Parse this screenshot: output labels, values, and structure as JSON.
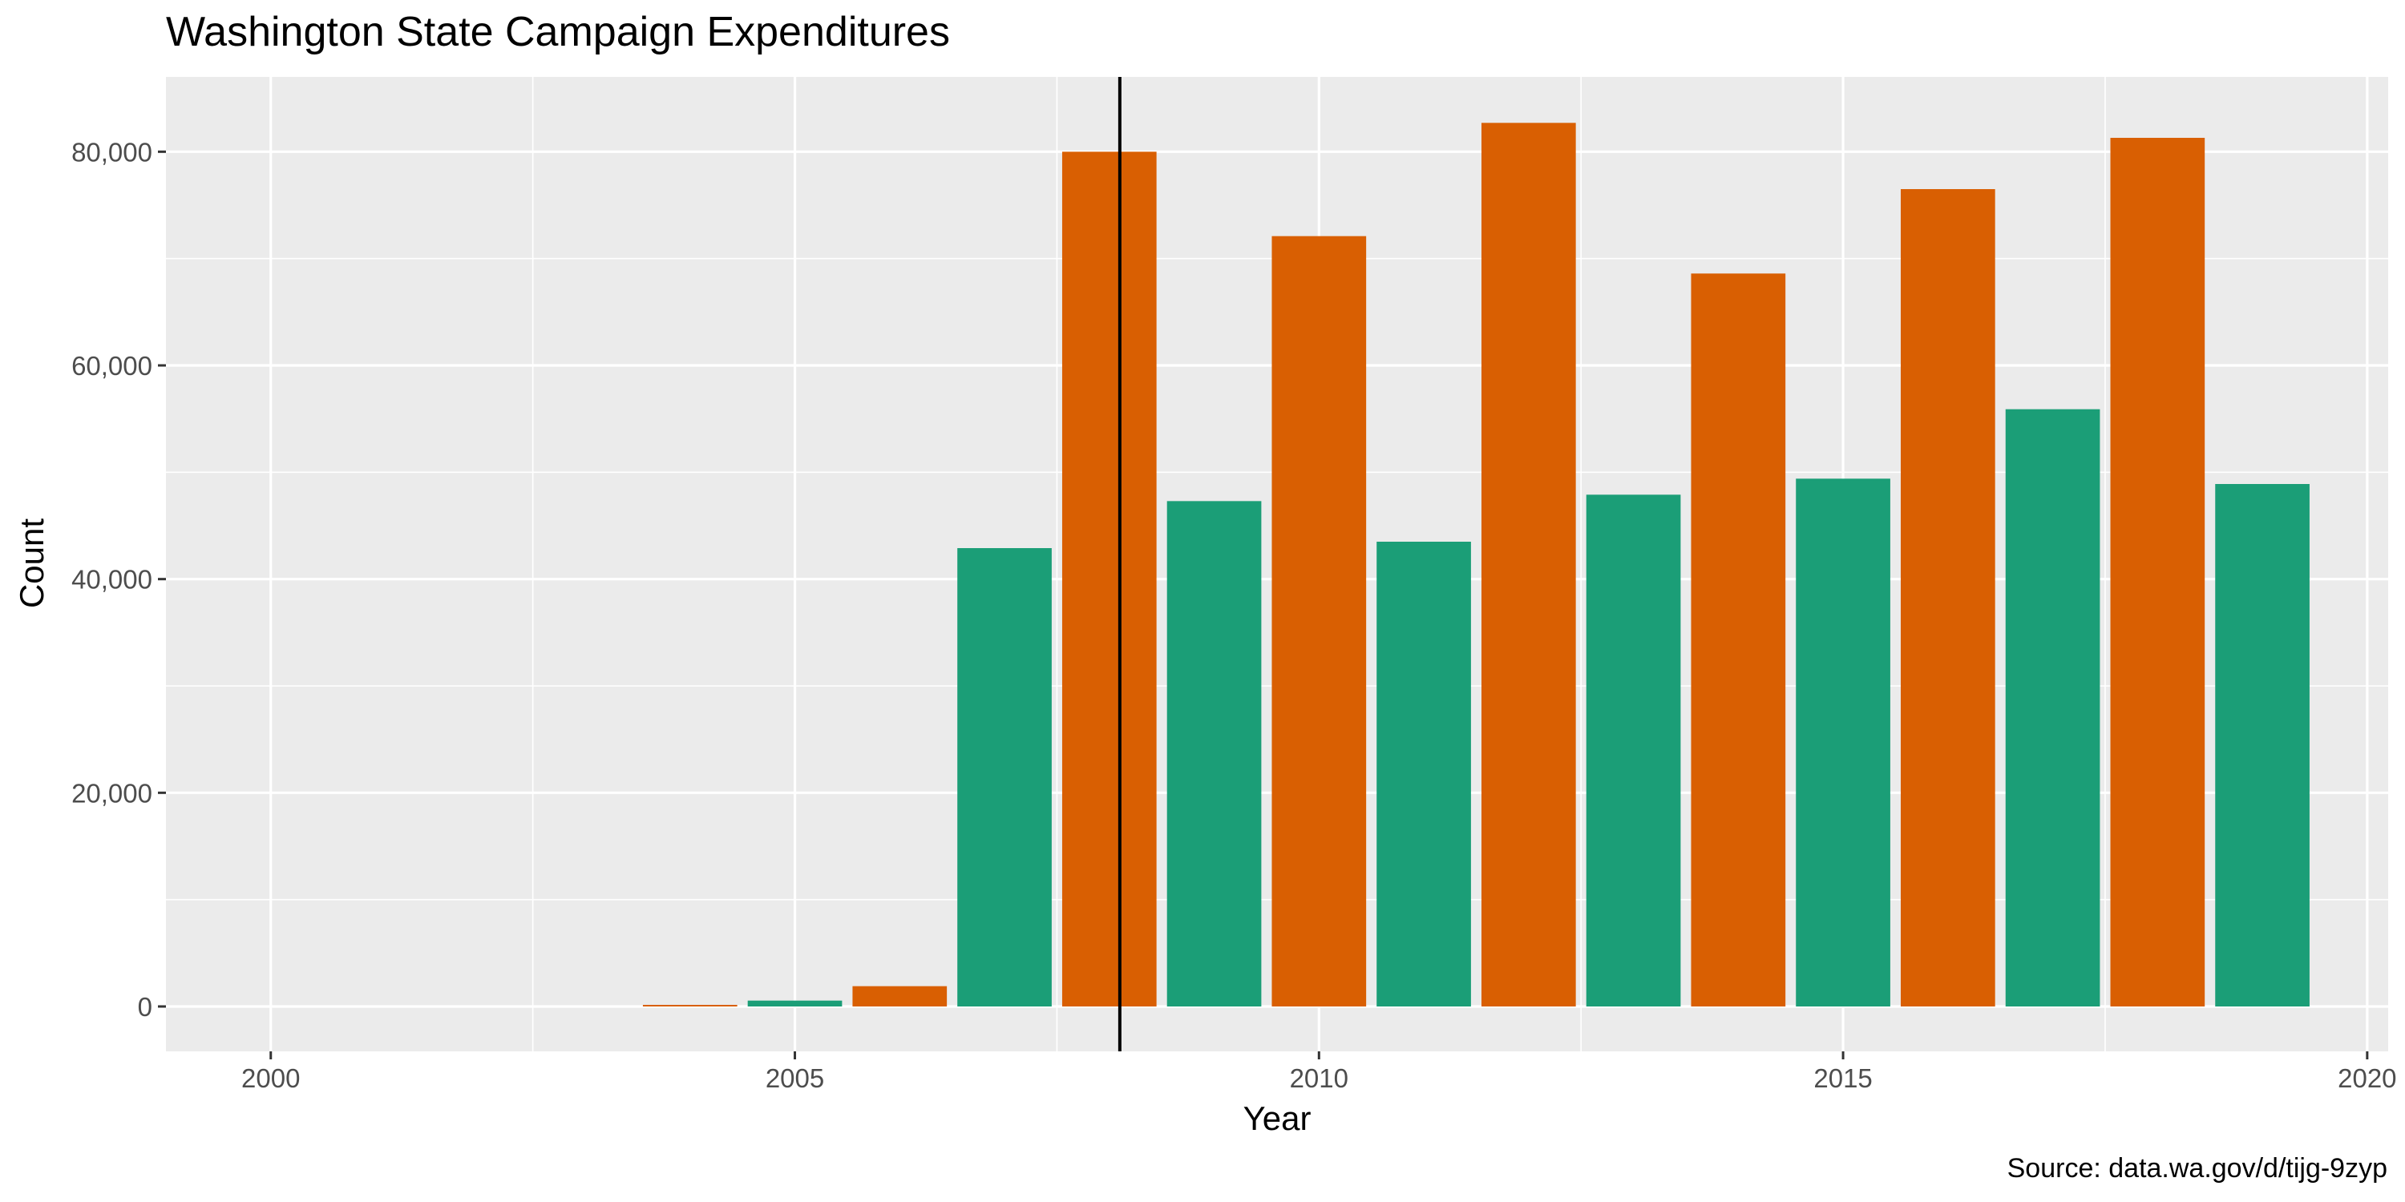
{
  "chart_data": {
    "type": "bar",
    "title": "Washington State Campaign Expenditures",
    "xlabel": "Year",
    "ylabel": "Count",
    "caption": "Source: data.wa.gov/d/tijg-9zyp",
    "xlim": [
      1999,
      2020.2
    ],
    "ylim": [
      -4200,
      87000
    ],
    "x_ticks": [
      2000,
      2005,
      2010,
      2015,
      2020
    ],
    "x_tick_labels": [
      "2000",
      "2005",
      "2010",
      "2015",
      "2020"
    ],
    "y_ticks": [
      0,
      20000,
      40000,
      60000,
      80000
    ],
    "y_tick_labels": [
      "0",
      "20,000",
      "40,000",
      "60,000",
      "80,000"
    ],
    "grid": true,
    "panel_background": "#ebebeb",
    "colors": {
      "odd_year": "#1b9e77",
      "even_year": "#d95f02",
      "marker_line": "#000000"
    },
    "reference_line": {
      "x": 2008.1
    },
    "x": [
      2004,
      2005,
      2006,
      2007,
      2008,
      2009,
      2010,
      2011,
      2012,
      2013,
      2014,
      2015,
      2016,
      2017,
      2018,
      2019
    ],
    "values": [
      150,
      550,
      1900,
      42900,
      80000,
      47300,
      72100,
      43500,
      82700,
      47900,
      68600,
      49400,
      76500,
      55900,
      81300,
      48900
    ]
  }
}
